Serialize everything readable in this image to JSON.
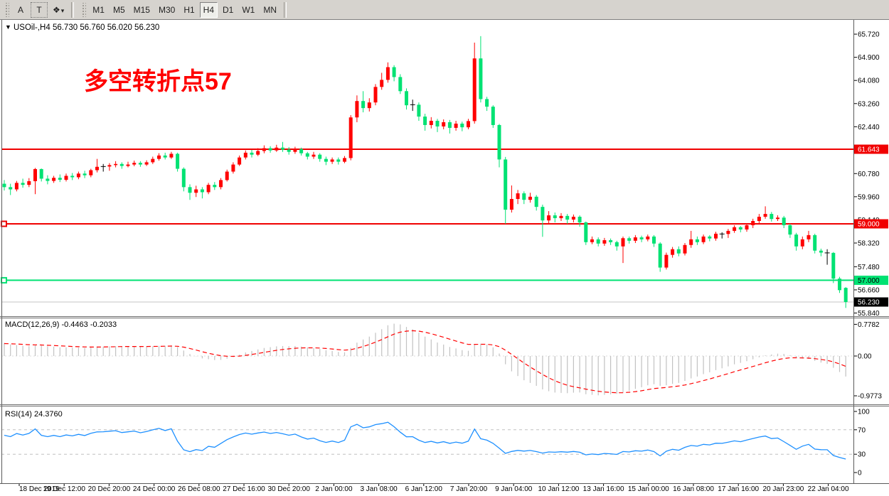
{
  "toolbar": {
    "buttons": [
      "A",
      "T"
    ],
    "objects_tool_caret": "▾",
    "objects_tool_glyph": "❖",
    "timeframes": [
      "M1",
      "M5",
      "M15",
      "M30",
      "H1",
      "H4",
      "D1",
      "W1",
      "MN"
    ],
    "active_timeframe": "H4"
  },
  "header": {
    "dropdown_glyph": "▼",
    "symbol_line": "USOil-,H4  56.730 56.760 56.020 56.230"
  },
  "annotation": {
    "text": "多空转折点57",
    "color": "#ff0000"
  },
  "macd": {
    "label": "MACD(12,26,9) -0.4463 -0.2033"
  },
  "rsi": {
    "label": "RSI(14) 24.3760"
  },
  "chart_data": {
    "type": "candlestick",
    "title": "USOil- H4",
    "symbol": "USOil-",
    "timeframe": "H4",
    "ohlc_display": {
      "open": "56.730",
      "high": "56.760",
      "low": "56.020",
      "close": "56.230"
    },
    "colors": {
      "bull": "#ff0000",
      "bear": "#00e273",
      "doji": "#000000",
      "hline_red": "#f00000",
      "hline_green": "#00e273",
      "current_line": "#c6c6c6",
      "current_tag_bg": "#000000",
      "macd_hist": "#c2c2c2",
      "macd_signal": "#ff0000",
      "rsi_line": "#1e90ff",
      "level_dash": "#c0c0c0",
      "axis_text": "#000000"
    },
    "price_axis": [
      65.72,
      64.9,
      64.08,
      63.26,
      62.44,
      61.62,
      60.78,
      59.96,
      59.14,
      58.32,
      57.48,
      56.66,
      55.84
    ],
    "horizontal_lines": [
      {
        "price": 61.643,
        "label": "61.643",
        "color": "#f00000",
        "tag_bg": "#f00000",
        "tag_text": "#ffffff",
        "marker": false
      },
      {
        "price": 59.0,
        "label": "59.000",
        "color": "#f00000",
        "tag_bg": "#f00000",
        "tag_text": "#ffffff",
        "marker": true
      },
      {
        "price": 57.0,
        "label": "57.000",
        "color": "#00e273",
        "tag_bg": "#00e273",
        "tag_text": "#000000",
        "marker": true
      }
    ],
    "current_price": {
      "value": 56.23,
      "label": "56.230"
    },
    "time_axis": [
      "18 Dec 2019",
      "19 Dec 12:00",
      "20 Dec 20:00",
      "24 Dec 00:00",
      "26 Dec 08:00",
      "27 Dec 16:00",
      "30 Dec 20:00",
      "2 Jan 00:00",
      "3 Jan 08:00",
      "6 Jan 12:00",
      "7 Jan 20:00",
      "9 Jan 04:00",
      "10 Jan 12:00",
      "13 Jan 16:00",
      "15 Jan 00:00",
      "16 Jan 08:00",
      "17 Jan 16:00",
      "20 Jan 23:00",
      "22 Jan 04:00"
    ],
    "indicators": [
      {
        "name": "MACD",
        "params": [
          12,
          26,
          9
        ],
        "current_values": [
          -0.4463,
          -0.2033
        ],
        "axis": [
          0.7782,
          0.0,
          -0.9773
        ]
      },
      {
        "name": "RSI",
        "params": [
          14
        ],
        "current_value": 24.376,
        "axis": [
          100,
          70,
          30,
          0
        ],
        "levels": [
          70,
          30
        ]
      }
    ],
    "candles": [
      [
        60.42,
        60.55,
        60.18,
        60.3
      ],
      [
        60.3,
        60.42,
        60.02,
        60.22
      ],
      [
        60.22,
        60.52,
        60.15,
        60.45
      ],
      [
        60.45,
        60.6,
        60.28,
        60.38
      ],
      [
        60.38,
        60.62,
        60.3,
        60.51
      ],
      [
        60.51,
        60.98,
        60.05,
        60.94
      ],
      [
        60.94,
        60.96,
        60.5,
        60.6
      ],
      [
        60.6,
        60.72,
        60.4,
        60.52
      ],
      [
        60.52,
        60.7,
        60.45,
        60.63
      ],
      [
        60.63,
        60.75,
        60.48,
        60.56
      ],
      [
        60.56,
        60.78,
        60.5,
        60.7
      ],
      [
        60.7,
        60.8,
        60.55,
        60.65
      ],
      [
        60.65,
        60.85,
        60.58,
        60.78
      ],
      [
        60.78,
        60.88,
        60.62,
        60.72
      ],
      [
        60.72,
        60.95,
        60.65,
        60.9
      ],
      [
        60.9,
        61.3,
        60.82,
        61.02
      ],
      [
        61.02,
        61.12,
        60.85,
        61.03
      ],
      [
        61.03,
        61.15,
        60.88,
        61.08
      ],
      [
        61.08,
        61.22,
        61.0,
        61.12
      ],
      [
        61.12,
        61.18,
        60.95,
        61.05
      ],
      [
        61.05,
        61.2,
        61.0,
        61.1
      ],
      [
        61.1,
        61.24,
        61.04,
        61.16
      ],
      [
        61.16,
        61.22,
        61.02,
        61.1
      ],
      [
        61.1,
        61.25,
        61.05,
        61.18
      ],
      [
        61.18,
        61.38,
        61.12,
        61.3
      ],
      [
        61.3,
        61.5,
        61.24,
        61.42
      ],
      [
        61.42,
        61.52,
        61.28,
        61.35
      ],
      [
        61.35,
        61.55,
        61.3,
        61.48
      ],
      [
        61.48,
        61.52,
        60.85,
        60.95
      ],
      [
        60.95,
        61.0,
        60.15,
        60.3
      ],
      [
        60.3,
        60.4,
        59.85,
        60.1
      ],
      [
        60.1,
        60.35,
        59.95,
        60.22
      ],
      [
        60.22,
        60.3,
        59.9,
        60.12
      ],
      [
        60.12,
        60.45,
        60.05,
        60.38
      ],
      [
        60.38,
        60.48,
        60.2,
        60.3
      ],
      [
        60.3,
        60.62,
        60.22,
        60.55
      ],
      [
        60.55,
        60.92,
        60.5,
        60.85
      ],
      [
        60.85,
        61.18,
        60.78,
        61.1
      ],
      [
        61.1,
        61.42,
        61.05,
        61.35
      ],
      [
        61.35,
        61.6,
        61.28,
        61.52
      ],
      [
        61.52,
        61.62,
        61.35,
        61.45
      ],
      [
        61.45,
        61.68,
        61.4,
        61.58
      ],
      [
        61.58,
        61.78,
        61.5,
        61.68
      ],
      [
        61.68,
        61.75,
        61.52,
        61.6
      ],
      [
        61.6,
        61.8,
        61.55,
        61.7
      ],
      [
        61.7,
        61.9,
        61.55,
        61.63
      ],
      [
        61.63,
        61.72,
        61.45,
        61.55
      ],
      [
        61.55,
        61.73,
        61.48,
        61.65
      ],
      [
        61.65,
        61.7,
        61.42,
        61.5
      ],
      [
        61.5,
        61.55,
        61.28,
        61.38
      ],
      [
        61.38,
        61.55,
        61.3,
        61.45
      ],
      [
        61.45,
        61.5,
        61.2,
        61.3
      ],
      [
        61.3,
        61.38,
        61.08,
        61.2
      ],
      [
        61.2,
        61.35,
        61.12,
        61.28
      ],
      [
        61.28,
        61.35,
        61.1,
        61.2
      ],
      [
        61.2,
        61.4,
        61.15,
        61.33
      ],
      [
        61.33,
        62.85,
        61.25,
        62.77
      ],
      [
        62.77,
        63.55,
        62.6,
        63.35
      ],
      [
        63.35,
        63.7,
        62.95,
        63.1
      ],
      [
        63.1,
        63.45,
        62.98,
        63.3
      ],
      [
        63.3,
        63.95,
        63.2,
        63.85
      ],
      [
        63.85,
        64.35,
        63.75,
        64.1
      ],
      [
        64.1,
        64.72,
        64.0,
        64.55
      ],
      [
        64.55,
        64.62,
        64.05,
        64.2
      ],
      [
        64.2,
        64.3,
        63.6,
        63.7
      ],
      [
        63.7,
        63.8,
        63.05,
        63.2
      ],
      [
        63.2,
        63.4,
        63.0,
        63.22
      ],
      [
        63.22,
        63.3,
        62.65,
        62.8
      ],
      [
        62.8,
        62.9,
        62.3,
        62.5
      ],
      [
        62.5,
        62.78,
        62.38,
        62.65
      ],
      [
        62.65,
        62.72,
        62.25,
        62.45
      ],
      [
        62.45,
        62.7,
        62.35,
        62.6
      ],
      [
        62.6,
        62.68,
        62.2,
        62.4
      ],
      [
        62.4,
        62.65,
        62.3,
        62.55
      ],
      [
        62.55,
        62.62,
        62.28,
        62.42
      ],
      [
        62.42,
        62.72,
        62.35,
        62.64
      ],
      [
        62.64,
        65.42,
        62.55,
        64.86
      ],
      [
        64.86,
        65.65,
        63.3,
        63.42
      ],
      [
        63.42,
        63.5,
        63.0,
        63.15
      ],
      [
        63.15,
        63.2,
        62.4,
        62.5
      ],
      [
        62.5,
        62.54,
        61.0,
        61.28
      ],
      [
        61.28,
        61.37,
        59.0,
        59.5
      ],
      [
        59.5,
        60.36,
        59.4,
        59.88
      ],
      [
        59.88,
        60.2,
        59.7,
        60.08
      ],
      [
        60.08,
        60.15,
        59.7,
        59.85
      ],
      [
        59.85,
        60.1,
        59.75,
        59.96
      ],
      [
        59.96,
        60.02,
        59.47,
        59.6
      ],
      [
        59.6,
        59.68,
        58.54,
        59.12
      ],
      [
        59.12,
        59.45,
        59.0,
        59.3
      ],
      [
        59.3,
        59.4,
        59.05,
        59.2
      ],
      [
        59.2,
        59.38,
        59.1,
        59.28
      ],
      [
        59.28,
        59.35,
        59.0,
        59.15
      ],
      [
        59.15,
        59.33,
        59.05,
        59.25
      ],
      [
        59.25,
        59.3,
        58.9,
        59.05
      ],
      [
        59.05,
        59.08,
        58.25,
        58.35
      ],
      [
        58.35,
        58.55,
        58.28,
        58.45
      ],
      [
        58.45,
        58.52,
        58.2,
        58.3
      ],
      [
        58.3,
        58.5,
        58.22,
        58.42
      ],
      [
        58.42,
        58.48,
        58.25,
        58.35
      ],
      [
        58.35,
        58.4,
        58.05,
        58.2
      ],
      [
        58.2,
        58.55,
        57.61,
        58.49
      ],
      [
        58.49,
        58.55,
        58.3,
        58.4
      ],
      [
        58.4,
        58.6,
        58.32,
        58.52
      ],
      [
        58.52,
        58.58,
        58.35,
        58.45
      ],
      [
        58.45,
        58.62,
        58.38,
        58.55
      ],
      [
        58.55,
        58.6,
        58.18,
        58.3
      ],
      [
        58.3,
        58.35,
        57.3,
        57.45
      ],
      [
        57.45,
        57.98,
        57.38,
        57.9
      ],
      [
        57.9,
        58.18,
        57.8,
        58.1
      ],
      [
        58.1,
        58.2,
        57.85,
        57.95
      ],
      [
        57.95,
        58.32,
        57.88,
        58.25
      ],
      [
        58.25,
        58.75,
        58.15,
        58.45
      ],
      [
        58.45,
        58.55,
        58.25,
        58.35
      ],
      [
        58.35,
        58.62,
        58.28,
        58.55
      ],
      [
        58.55,
        58.6,
        58.38,
        58.48
      ],
      [
        58.48,
        58.72,
        58.4,
        58.65
      ],
      [
        58.65,
        58.7,
        58.48,
        58.64
      ],
      [
        58.64,
        58.82,
        58.5,
        58.75
      ],
      [
        58.75,
        58.95,
        58.68,
        58.88
      ],
      [
        58.88,
        58.92,
        58.7,
        58.8
      ],
      [
        58.8,
        59.02,
        58.72,
        58.95
      ],
      [
        58.95,
        59.18,
        58.85,
        59.1
      ],
      [
        59.1,
        59.35,
        59.02,
        59.25
      ],
      [
        59.25,
        59.62,
        59.18,
        59.35
      ],
      [
        59.35,
        59.42,
        59.08,
        59.17
      ],
      [
        59.17,
        59.3,
        59.1,
        59.22
      ],
      [
        59.22,
        59.28,
        58.85,
        58.95
      ],
      [
        58.95,
        59.0,
        58.5,
        58.62
      ],
      [
        58.62,
        58.68,
        58.05,
        58.2
      ],
      [
        58.2,
        58.55,
        58.1,
        58.45
      ],
      [
        58.45,
        58.75,
        58.35,
        58.6
      ],
      [
        58.6,
        58.65,
        57.95,
        58.05
      ],
      [
        58.05,
        58.12,
        57.85,
        57.98
      ],
      [
        57.98,
        58.1,
        57.55,
        57.97
      ],
      [
        57.97,
        58.0,
        56.9,
        57.06
      ],
      [
        57.06,
        57.12,
        56.55,
        56.65
      ],
      [
        56.73,
        56.76,
        56.02,
        56.23
      ]
    ]
  }
}
